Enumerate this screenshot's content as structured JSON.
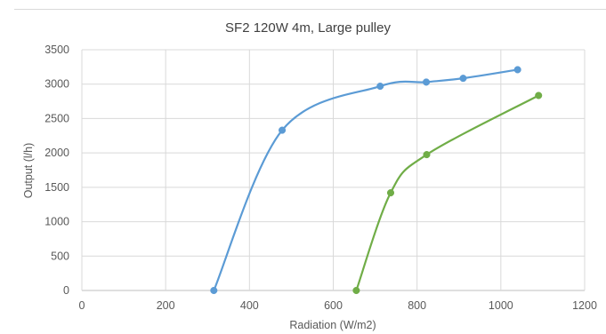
{
  "chart_data": {
    "type": "scatter",
    "title": "SF2 120W 4m, Large pulley",
    "xlabel": "Radiation (W/m2)",
    "ylabel": "Output (l/h)",
    "xlim": [
      0,
      1200
    ],
    "ylim": [
      0,
      3500
    ],
    "xticks": [
      0,
      200,
      400,
      600,
      800,
      1000,
      1200
    ],
    "yticks": [
      0,
      500,
      1000,
      1500,
      2000,
      2500,
      3000,
      3500
    ],
    "grid": true,
    "legend": "none",
    "series": [
      {
        "color": "#5b9bd5",
        "smooth": true,
        "points": [
          [
            315,
            0
          ],
          [
            478,
            2330
          ],
          [
            712,
            2970
          ],
          [
            822,
            3030
          ],
          [
            910,
            3085
          ],
          [
            1040,
            3210
          ]
        ]
      },
      {
        "color": "#70ad47",
        "smooth": true,
        "points": [
          [
            655,
            0
          ],
          [
            737,
            1420
          ],
          [
            823,
            1975
          ],
          [
            1090,
            2835
          ]
        ]
      }
    ]
  }
}
